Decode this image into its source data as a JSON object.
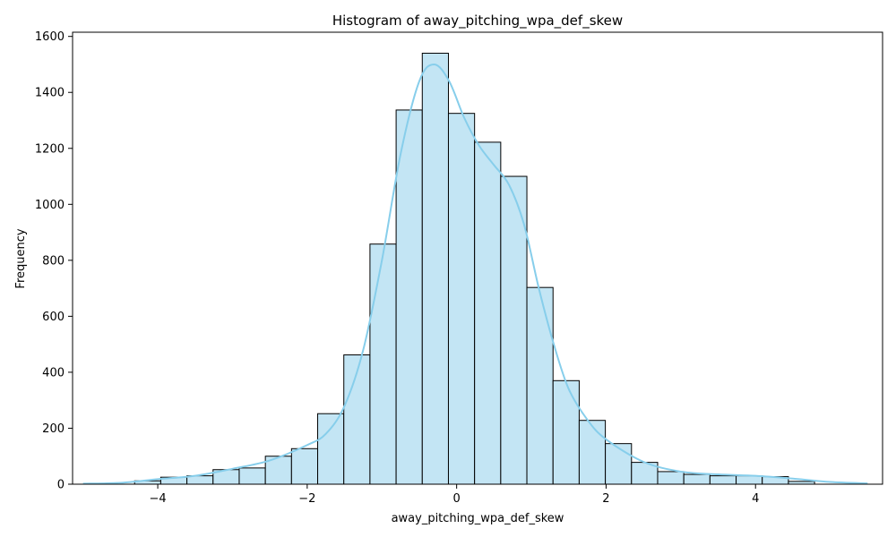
{
  "chart_data": {
    "type": "bar",
    "title": "Histogram of away_pitching_wpa_def_skew",
    "xlabel": "away_pitching_wpa_def_skew",
    "ylabel": "Frequency",
    "xlim": [
      -5.14,
      5.7
    ],
    "ylim": [
      0,
      1615
    ],
    "xticks": [
      -4,
      -2,
      0,
      2,
      4
    ],
    "xtick_labels": [
      "−4",
      "−2",
      "0",
      "2",
      "4"
    ],
    "yticks": [
      0,
      200,
      400,
      600,
      800,
      1000,
      1200,
      1400,
      1600
    ],
    "ytick_labels": [
      "0",
      "200",
      "400",
      "600",
      "800",
      "1000",
      "1200",
      "1400",
      "1600"
    ],
    "bin_edges": [
      -4.31,
      -3.96,
      -3.61,
      -3.26,
      -2.91,
      -2.56,
      -2.21,
      -1.86,
      -1.51,
      -1.16,
      -0.81,
      -0.46,
      -0.11,
      0.24,
      0.59,
      0.94,
      1.29,
      1.64,
      1.99,
      2.34,
      2.69,
      3.04,
      3.39,
      3.74,
      4.09,
      4.44,
      4.79
    ],
    "values": [
      12,
      25,
      30,
      52,
      58,
      100,
      127,
      252,
      462,
      858,
      1337,
      1540,
      1325,
      1222,
      1100,
      703,
      370,
      228,
      145,
      78,
      45,
      35,
      30,
      30,
      27,
      10
    ],
    "bar_fill": "#c3e5f4",
    "bar_edge": "#000000",
    "kde_color": "#87ceeb",
    "kde": {
      "x": [
        -5.0,
        -4.5,
        -4.0,
        -3.5,
        -3.0,
        -2.5,
        -2.0,
        -1.75,
        -1.5,
        -1.25,
        -1.0,
        -0.75,
        -0.5,
        -0.3,
        -0.1,
        0.1,
        0.3,
        0.5,
        0.7,
        0.9,
        1.1,
        1.3,
        1.5,
        1.75,
        2.0,
        2.5,
        3.0,
        3.5,
        4.0,
        4.5,
        5.0,
        5.5
      ],
      "y": [
        2,
        5,
        18,
        30,
        55,
        85,
        140,
        180,
        280,
        480,
        800,
        1180,
        1440,
        1500,
        1440,
        1310,
        1210,
        1140,
        1070,
        930,
        700,
        500,
        340,
        230,
        160,
        80,
        45,
        35,
        30,
        20,
        8,
        3
      ]
    },
    "grid": false,
    "legend": "none"
  }
}
